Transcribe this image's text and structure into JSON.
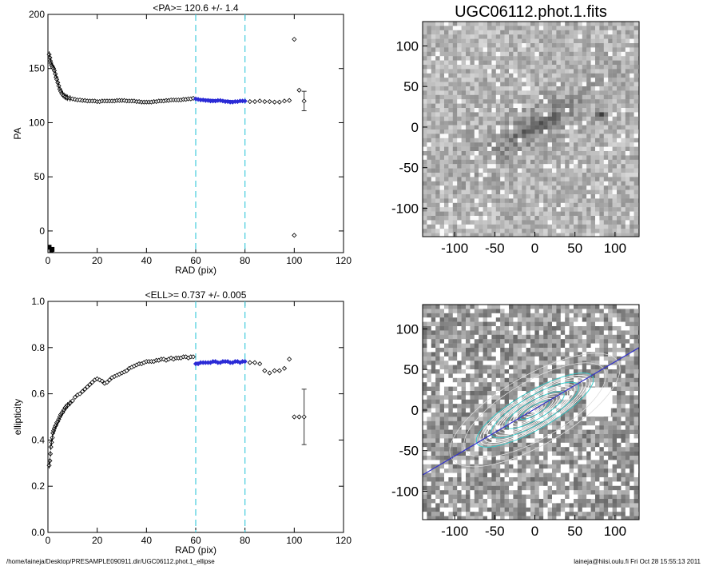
{
  "footer": {
    "left": "/home/laineja/Desktop/PRESAMPLE090911.dir/UGC06112.phot.1_ellipse",
    "right": "laineja@hiisi.oulu.fi  Fri Oct 28 15:55:13 2011"
  },
  "chart_data": [
    {
      "type": "scatter",
      "title": "<PA>= 120.6 +/-   1.4",
      "xlabel": "RAD (pix)",
      "ylabel": "PA",
      "xlim": [
        0,
        120
      ],
      "ylim": [
        -20,
        200
      ],
      "xticks": [
        0,
        20,
        40,
        60,
        80,
        100,
        120
      ],
      "yticks": [
        0,
        50,
        100,
        150,
        200
      ],
      "vlines": [
        60,
        80
      ],
      "series": [
        {
          "points": [
            [
              0.5,
              163
            ],
            [
              0.8,
              160
            ],
            [
              1.0,
              157
            ],
            [
              1.2,
              155
            ],
            [
              1.5,
              153
            ],
            [
              1.8,
              152
            ],
            [
              2.0,
              151
            ],
            [
              2.3,
              150
            ],
            [
              2.6,
              148
            ],
            [
              3.0,
              145
            ],
            [
              3.3,
              142
            ],
            [
              3.6,
              140
            ],
            [
              4.0,
              137
            ],
            [
              4.4,
              134
            ],
            [
              4.8,
              131
            ],
            [
              5.2,
              129
            ],
            [
              5.6,
              127
            ],
            [
              6.0,
              126
            ],
            [
              6.5,
              125
            ],
            [
              7.0,
              124
            ],
            [
              7.5,
              123.5
            ],
            [
              8.0,
              123
            ],
            [
              9,
              122.5
            ],
            [
              10,
              122
            ],
            [
              11,
              121.5
            ],
            [
              12,
              121
            ],
            [
              13,
              121
            ],
            [
              14,
              120.5
            ],
            [
              15,
              120.5
            ],
            [
              16,
              120
            ],
            [
              17,
              120
            ],
            [
              18,
              120
            ],
            [
              19,
              120
            ],
            [
              20,
              119.5
            ],
            [
              21,
              119.5
            ],
            [
              22,
              120
            ],
            [
              23,
              120
            ],
            [
              24,
              120
            ],
            [
              25,
              120
            ],
            [
              26,
              120
            ],
            [
              27,
              120
            ],
            [
              28,
              120.5
            ],
            [
              29,
              120.5
            ],
            [
              30,
              120.5
            ],
            [
              31,
              120.5
            ],
            [
              32,
              120
            ],
            [
              33,
              120
            ],
            [
              34,
              120
            ],
            [
              35,
              120
            ],
            [
              36,
              119.5
            ],
            [
              37,
              119.5
            ],
            [
              38,
              119
            ],
            [
              39,
              119
            ],
            [
              40,
              119
            ],
            [
              41,
              119
            ],
            [
              42,
              119
            ],
            [
              43,
              119.5
            ],
            [
              44,
              119.5
            ],
            [
              45,
              120
            ],
            [
              46,
              120
            ],
            [
              47,
              120
            ],
            [
              48,
              120.5
            ],
            [
              49,
              120.5
            ],
            [
              50,
              121
            ],
            [
              51,
              121
            ],
            [
              52,
              121
            ],
            [
              53,
              121
            ],
            [
              54,
              121
            ],
            [
              55,
              121.5
            ],
            [
              56,
              121.5
            ],
            [
              57,
              122
            ],
            [
              58,
              122
            ],
            [
              59,
              122.5
            ],
            [
              60,
              122
            ],
            [
              61,
              121.5
            ],
            [
              62,
              121
            ],
            [
              63,
              121
            ],
            [
              64,
              120.5
            ],
            [
              65,
              120.5
            ],
            [
              66,
              120
            ],
            [
              67,
              120
            ],
            [
              68,
              120
            ],
            [
              69,
              120.5
            ],
            [
              70,
              120.5
            ],
            [
              71,
              120
            ],
            [
              72,
              119.5
            ],
            [
              73,
              119.5
            ],
            [
              74,
              119
            ],
            [
              75,
              119
            ],
            [
              76,
              119.5
            ],
            [
              77,
              119.5
            ],
            [
              78,
              120
            ],
            [
              79,
              120
            ],
            [
              80,
              120
            ],
            [
              82,
              119.5
            ],
            [
              84,
              119.5
            ],
            [
              86,
              120
            ],
            [
              88,
              119.5
            ],
            [
              90,
              119.5
            ],
            [
              92,
              119
            ],
            [
              94,
              119
            ],
            [
              96,
              120
            ],
            [
              98,
              120.5
            ],
            [
              100,
              177
            ],
            [
              100,
              -4
            ],
            [
              102,
              130
            ],
            [
              104,
              120
            ]
          ],
          "fit_segment": {
            "x": [
              60,
              80
            ],
            "y": [
              122,
              119.5
            ]
          },
          "error_bar": {
            "x": 104,
            "y": 120,
            "err": 9
          },
          "low_points": [
            [
              0.8,
              -15
            ],
            [
              1.2,
              -18
            ],
            [
              1.6,
              -18
            ],
            [
              2.0,
              -17
            ]
          ]
        }
      ]
    },
    {
      "type": "scatter",
      "title": "<ELL>= 0.737 +/-  0.005",
      "xlabel": "RAD (pix)",
      "ylabel": "ellipticity",
      "xlim": [
        0,
        120
      ],
      "ylim": [
        0.0,
        1.0
      ],
      "xticks": [
        0,
        20,
        40,
        60,
        80,
        100,
        120
      ],
      "yticks": [
        "0.0",
        "0.2",
        "0.4",
        "0.6",
        "0.8",
        "1.0"
      ],
      "vlines": [
        60,
        80
      ],
      "series": [
        {
          "points": [
            [
              0.5,
              0.29
            ],
            [
              0.8,
              0.31
            ],
            [
              1.0,
              0.34
            ],
            [
              1.2,
              0.37
            ],
            [
              1.5,
              0.39
            ],
            [
              1.8,
              0.41
            ],
            [
              2.0,
              0.43
            ],
            [
              2.3,
              0.44
            ],
            [
              2.6,
              0.45
            ],
            [
              3.0,
              0.46
            ],
            [
              3.3,
              0.465
            ],
            [
              3.6,
              0.475
            ],
            [
              4.0,
              0.48
            ],
            [
              4.4,
              0.49
            ],
            [
              4.8,
              0.5
            ],
            [
              5.2,
              0.51
            ],
            [
              5.6,
              0.515
            ],
            [
              6.0,
              0.52
            ],
            [
              6.5,
              0.53
            ],
            [
              7.0,
              0.54
            ],
            [
              7.5,
              0.545
            ],
            [
              8.0,
              0.55
            ],
            [
              9,
              0.56
            ],
            [
              10,
              0.57
            ],
            [
              11,
              0.585
            ],
            [
              12,
              0.595
            ],
            [
              13,
              0.6
            ],
            [
              14,
              0.61
            ],
            [
              15,
              0.62
            ],
            [
              16,
              0.63
            ],
            [
              17,
              0.64
            ],
            [
              18,
              0.65
            ],
            [
              19,
              0.66
            ],
            [
              20,
              0.665
            ],
            [
              21,
              0.66
            ],
            [
              22,
              0.655
            ],
            [
              23,
              0.645
            ],
            [
              24,
              0.65
            ],
            [
              25,
              0.66
            ],
            [
              26,
              0.67
            ],
            [
              27,
              0.675
            ],
            [
              28,
              0.68
            ],
            [
              29,
              0.685
            ],
            [
              30,
              0.69
            ],
            [
              31,
              0.695
            ],
            [
              32,
              0.7
            ],
            [
              33,
              0.71
            ],
            [
              34,
              0.715
            ],
            [
              35,
              0.72
            ],
            [
              36,
              0.725
            ],
            [
              37,
              0.73
            ],
            [
              38,
              0.73
            ],
            [
              39,
              0.735
            ],
            [
              40,
              0.74
            ],
            [
              41,
              0.74
            ],
            [
              42,
              0.74
            ],
            [
              43,
              0.74
            ],
            [
              44,
              0.745
            ],
            [
              45,
              0.745
            ],
            [
              46,
              0.75
            ],
            [
              47,
              0.75
            ],
            [
              48,
              0.745
            ],
            [
              49,
              0.75
            ],
            [
              50,
              0.755
            ],
            [
              51,
              0.75
            ],
            [
              52,
              0.755
            ],
            [
              53,
              0.755
            ],
            [
              54,
              0.755
            ],
            [
              55,
              0.76
            ],
            [
              56,
              0.76
            ],
            [
              57,
              0.755
            ],
            [
              58,
              0.76
            ],
            [
              59,
              0.76
            ],
            [
              60,
              0.73
            ],
            [
              61,
              0.73
            ],
            [
              62,
              0.735
            ],
            [
              63,
              0.735
            ],
            [
              64,
              0.735
            ],
            [
              65,
              0.735
            ],
            [
              66,
              0.735
            ],
            [
              67,
              0.74
            ],
            [
              68,
              0.74
            ],
            [
              69,
              0.735
            ],
            [
              70,
              0.735
            ],
            [
              71,
              0.74
            ],
            [
              72,
              0.74
            ],
            [
              73,
              0.74
            ],
            [
              74,
              0.735
            ],
            [
              75,
              0.735
            ],
            [
              76,
              0.74
            ],
            [
              77,
              0.74
            ],
            [
              78,
              0.735
            ],
            [
              79,
              0.74
            ],
            [
              80,
              0.74
            ],
            [
              82,
              0.735
            ],
            [
              84,
              0.735
            ],
            [
              86,
              0.73
            ],
            [
              88,
              0.7
            ],
            [
              90,
              0.69
            ],
            [
              92,
              0.7
            ],
            [
              94,
              0.7
            ],
            [
              96,
              0.71
            ],
            [
              98,
              0.75
            ],
            [
              100,
              0.5
            ],
            [
              102,
              0.5
            ],
            [
              104,
              0.5
            ]
          ],
          "fit_segment": {
            "x": [
              60,
              80
            ],
            "y": [
              0.735,
              0.738
            ]
          },
          "error_bar": {
            "x": 104,
            "y": 0.5,
            "err": 0.12
          }
        }
      ]
    },
    {
      "type": "heatmap",
      "title": "UGC06112.phot.1.fits",
      "xlim": [
        -140,
        130
      ],
      "ylim": [
        -135,
        130
      ],
      "xticks": [
        -100,
        -50,
        0,
        50,
        100
      ],
      "yticks": [
        100,
        50,
        0,
        -50,
        -100
      ]
    },
    {
      "type": "heatmap",
      "title": "",
      "xlim": [
        -140,
        130
      ],
      "ylim": [
        -135,
        130
      ],
      "xticks": [
        -100,
        -50,
        0,
        50,
        100
      ],
      "yticks": [
        100,
        50,
        0,
        -50,
        -100
      ],
      "major_axis_line": {
        "x": [
          -140,
          130
        ],
        "y": [
          -80,
          77
        ]
      }
    }
  ],
  "colors": {
    "vline": "#44ccdd",
    "fit": "#2b2bd6",
    "contour": "#ffffff",
    "contour_accent": "#33cccc",
    "axis_line": "#3333cc"
  }
}
